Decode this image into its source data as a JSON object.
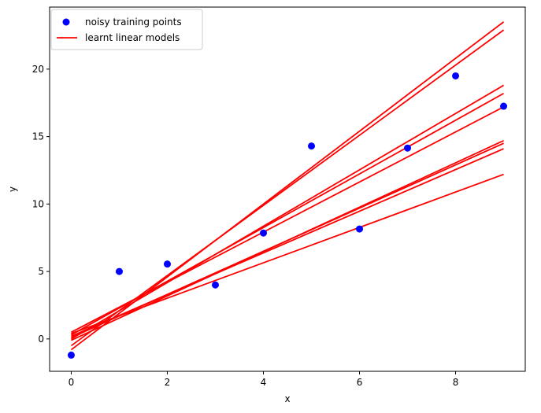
{
  "chart_data": {
    "type": "scatter",
    "title": "",
    "xlabel": "x",
    "ylabel": "y",
    "xlim": [
      -0.45,
      9.45
    ],
    "ylim": [
      -2.4,
      24.6
    ],
    "xticks": [
      0,
      2,
      4,
      6,
      8
    ],
    "yticks": [
      0,
      5,
      10,
      15,
      20
    ],
    "grid": false,
    "legend_position": "top-left",
    "points": {
      "name": "noisy training points",
      "color": "#0000ff",
      "x": [
        0,
        1,
        2,
        3,
        4,
        5,
        6,
        7,
        8,
        9
      ],
      "y": [
        -1.2,
        5.0,
        5.55,
        4.0,
        7.85,
        14.3,
        8.15,
        14.15,
        19.5,
        17.25
      ]
    },
    "lines": {
      "name": "learnt linear models",
      "color": "#ff0000",
      "x_range": [
        0,
        9
      ],
      "models": [
        {
          "y0": -0.8,
          "y1": 23.5
        },
        {
          "y0": -0.5,
          "y1": 22.9
        },
        {
          "y0": 0.0,
          "y1": 18.8
        },
        {
          "y0": 0.3,
          "y1": 18.2
        },
        {
          "y0": 0.5,
          "y1": 17.2
        },
        {
          "y0": -0.1,
          "y1": 14.7
        },
        {
          "y0": 0.1,
          "y1": 14.5
        },
        {
          "y0": 0.2,
          "y1": 14.1
        },
        {
          "y0": 0.4,
          "y1": 12.2
        }
      ]
    }
  }
}
